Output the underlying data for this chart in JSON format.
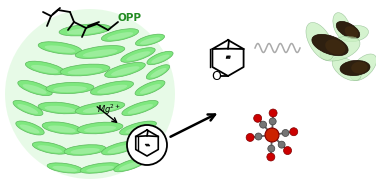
{
  "background_color": "#ffffff",
  "figsize": [
    3.76,
    1.89
  ],
  "dpi": 100,
  "protein_color": "#7FE87F",
  "protein_edge": "#5ab85a",
  "opp_color": "#228B22",
  "mg_text": "Mg²⁺",
  "opp_text": "OPP",
  "mol_center_color": "#CC2200",
  "mol_arm_color": "#707070",
  "mol_end_color": "#CC0000",
  "coil_color": "#aaaaaa",
  "helix_params": [
    [
      85,
      30,
      52,
      11,
      5
    ],
    [
      120,
      35,
      38,
      10,
      12
    ],
    [
      150,
      40,
      30,
      9,
      15
    ],
    [
      60,
      48,
      44,
      11,
      -8
    ],
    [
      100,
      52,
      50,
      11,
      8
    ],
    [
      138,
      55,
      36,
      10,
      18
    ],
    [
      160,
      58,
      28,
      9,
      22
    ],
    [
      45,
      68,
      40,
      11,
      -12
    ],
    [
      85,
      70,
      50,
      11,
      5
    ],
    [
      125,
      70,
      42,
      11,
      15
    ],
    [
      158,
      72,
      26,
      9,
      28
    ],
    [
      35,
      88,
      36,
      11,
      -18
    ],
    [
      70,
      88,
      48,
      11,
      2
    ],
    [
      112,
      88,
      44,
      11,
      12
    ],
    [
      150,
      88,
      32,
      10,
      22
    ],
    [
      28,
      108,
      32,
      10,
      -22
    ],
    [
      60,
      108,
      44,
      11,
      -5
    ],
    [
      100,
      108,
      50,
      11,
      8
    ],
    [
      140,
      108,
      38,
      10,
      18
    ],
    [
      30,
      128,
      30,
      10,
      -20
    ],
    [
      62,
      128,
      40,
      11,
      -8
    ],
    [
      100,
      128,
      46,
      11,
      5
    ],
    [
      138,
      128,
      38,
      10,
      15
    ],
    [
      50,
      148,
      36,
      10,
      -12
    ],
    [
      85,
      150,
      42,
      10,
      5
    ],
    [
      120,
      148,
      38,
      10,
      15
    ],
    [
      148,
      152,
      30,
      9,
      20
    ],
    [
      65,
      168,
      36,
      9,
      -8
    ],
    [
      100,
      168,
      40,
      9,
      8
    ],
    [
      130,
      165,
      34,
      9,
      18
    ]
  ]
}
